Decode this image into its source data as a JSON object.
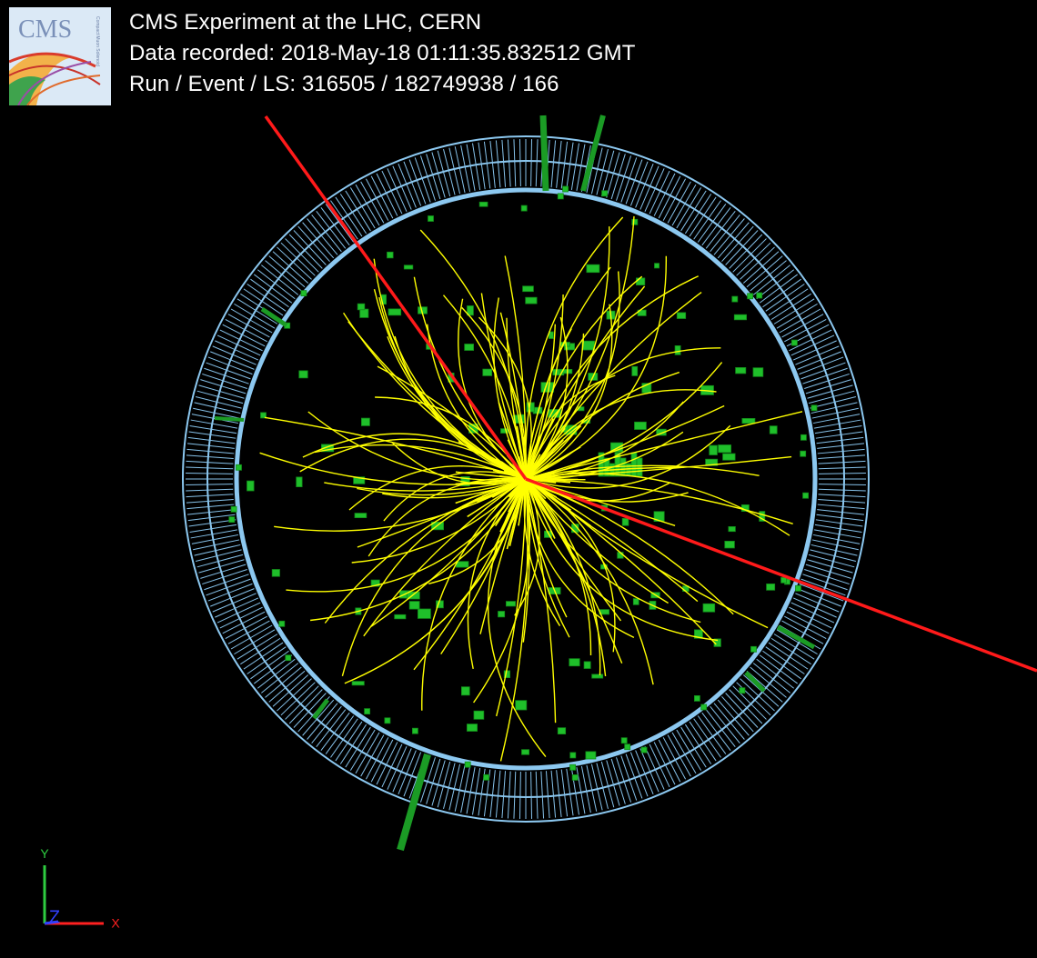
{
  "header": {
    "title": "CMS Experiment at the LHC, CERN",
    "recorded": "Data recorded: 2018-May-18 01:11:35.832512 GMT",
    "run_event": "Run / Event / LS: 316505 / 182749938 / 166"
  },
  "logo": {
    "text": "CMS",
    "subtext": "Compact Muon Solenoid"
  },
  "axes": {
    "y_label": "Y",
    "x_label": "X",
    "z_label": "Z"
  },
  "colors": {
    "background": "#000000",
    "tracks": "#ffff00",
    "muons": "#ff1a1a",
    "deposits": "#1fbf2a",
    "calorimeter_ring": "#87c6ef",
    "axis_y": "#2ecc40",
    "axis_x": "#ff2020",
    "axis_z": "#3040ff"
  }
}
